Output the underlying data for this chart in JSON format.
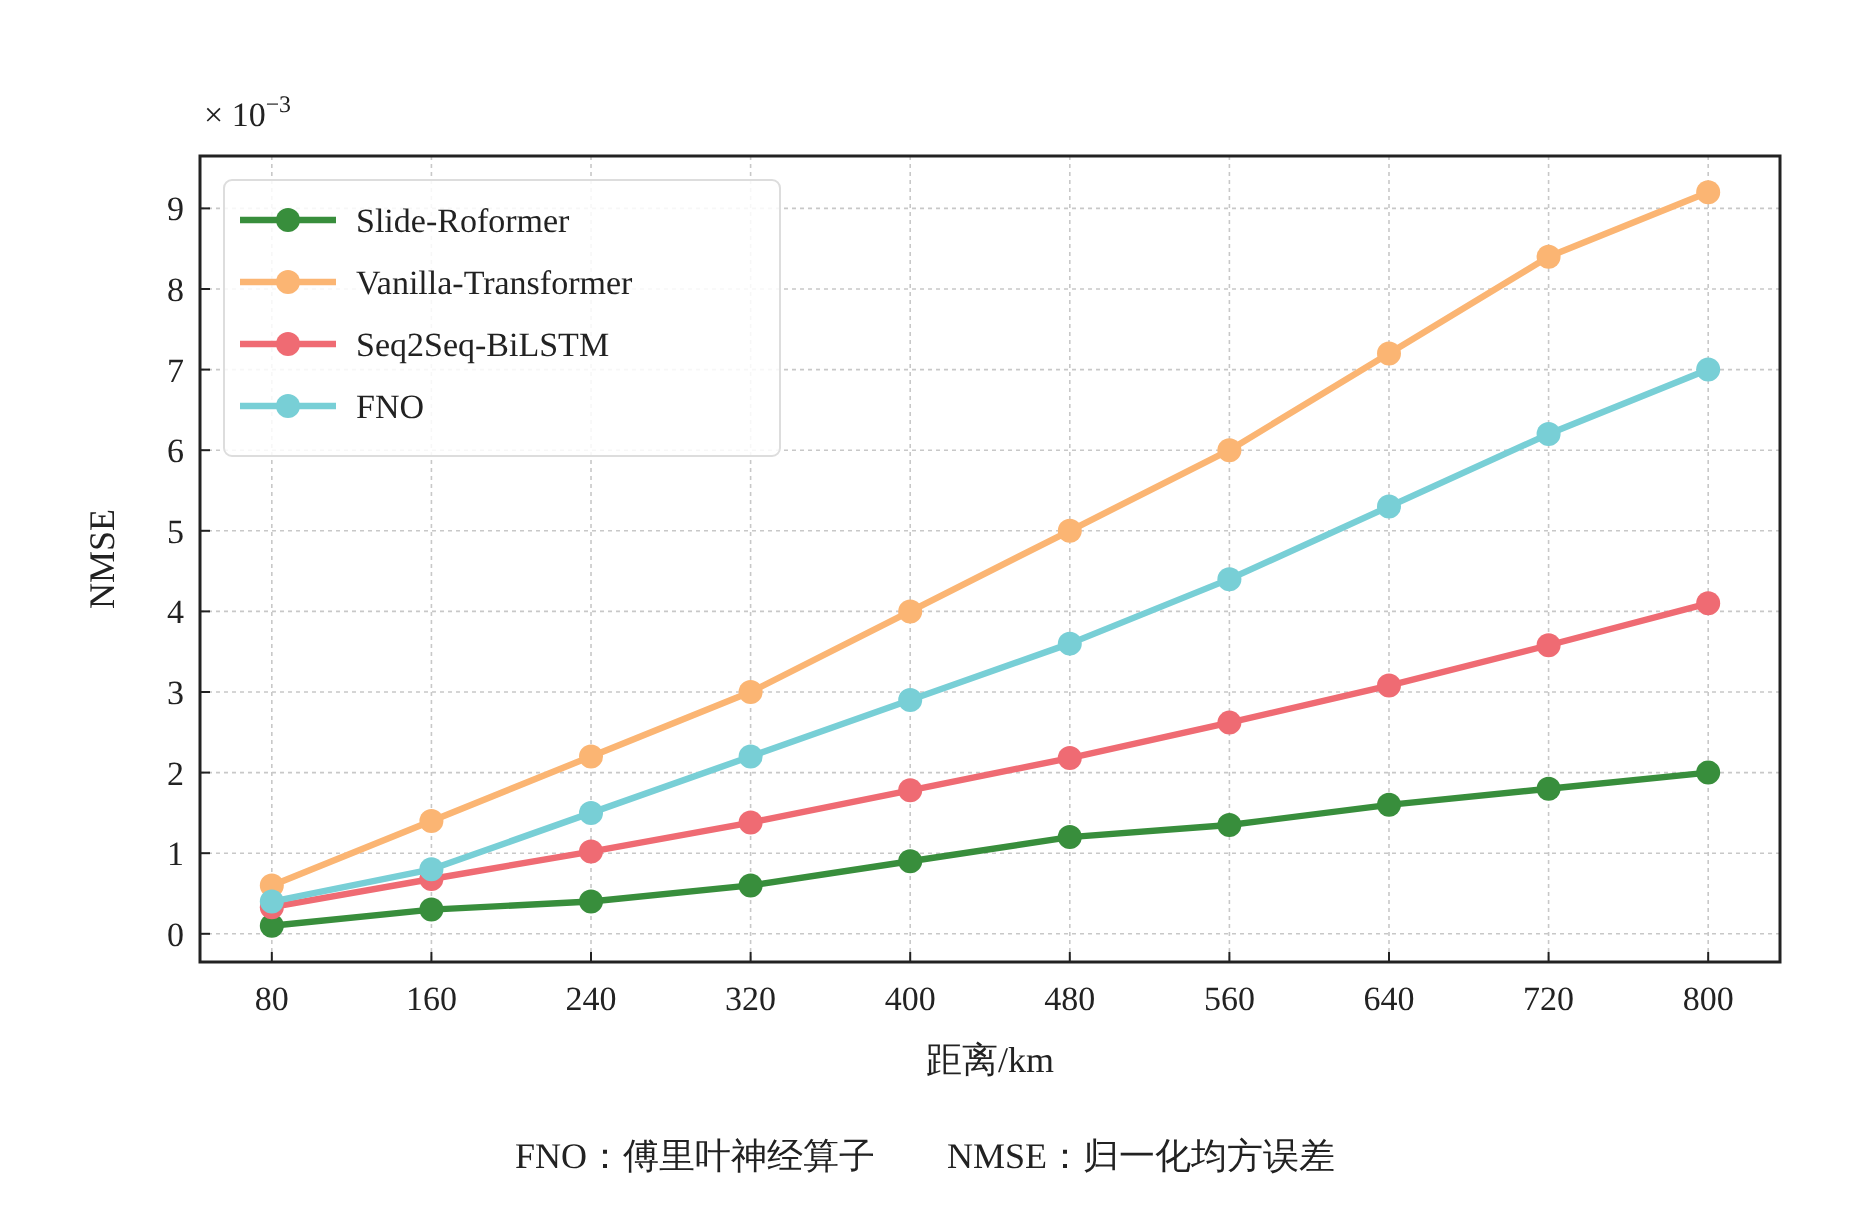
{
  "chart_data": {
    "type": "line",
    "xlabel": "距离/km",
    "ylabel": "NMSE",
    "x": [
      80,
      160,
      240,
      320,
      400,
      480,
      560,
      640,
      720,
      800
    ],
    "xlim": [
      44,
      836
    ],
    "xticks": [
      80,
      160,
      240,
      320,
      400,
      480,
      560,
      640,
      720,
      800
    ],
    "ylim": [
      -0.35,
      9.65
    ],
    "yticks": [
      0,
      1,
      2,
      3,
      4,
      5,
      6,
      7,
      8,
      9
    ],
    "grid": true,
    "legend": "top left",
    "marker": "circle",
    "line_style": "solid",
    "annotations": [
      "× 10$^{−3}$",
      "FNO：傅里叶神经算子　　NMSE：归一化均方误差"
    ],
    "series": [
      {
        "name": "Slide-Roformer",
        "color": "#388e3c",
        "values": [
          0.1,
          0.3,
          0.4,
          0.6,
          0.9,
          1.2,
          1.35,
          1.6,
          1.8,
          2.0
        ]
      },
      {
        "name": "Vanilla-Transformer",
        "color": "#fbb573",
        "values": [
          0.6,
          1.4,
          2.2,
          3.0,
          4.0,
          5.0,
          6.0,
          7.2,
          8.4,
          9.2
        ]
      },
      {
        "name": "Seq2Seq-BiLSTM",
        "color": "#ef6b73",
        "values": [
          0.33,
          0.68,
          1.02,
          1.38,
          1.78,
          2.18,
          2.62,
          3.08,
          3.58,
          4.1
        ]
      },
      {
        "name": "FNO",
        "color": "#78cfd6",
        "values": [
          0.4,
          0.8,
          1.5,
          2.2,
          2.9,
          3.6,
          4.4,
          5.3,
          6.2,
          7.0
        ]
      }
    ]
  }
}
